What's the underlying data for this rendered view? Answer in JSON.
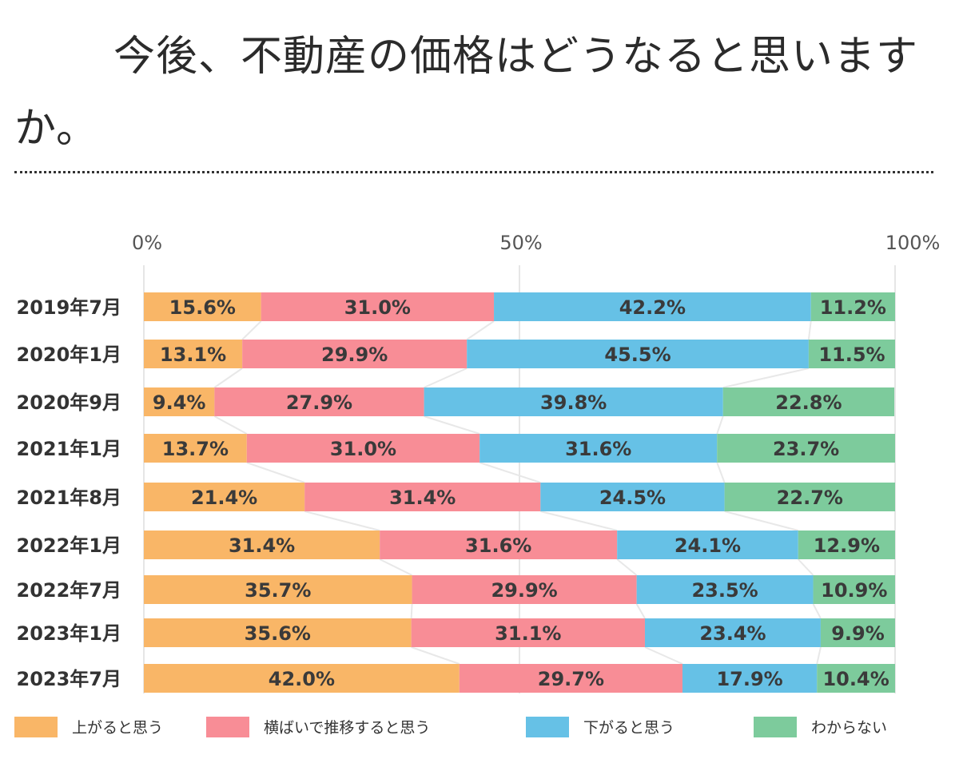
{
  "header": {
    "title": "今後、不動産の価格はどうなると思いますか。"
  },
  "chart_data": {
    "type": "bar",
    "orientation": "horizontal",
    "stacked": true,
    "title": "今後、不動産の価格はどうなると思いますか。",
    "xlim": [
      0,
      100
    ],
    "x_ticks": [
      "0%",
      "50%",
      "100%"
    ],
    "categories": [
      "2019年7月",
      "2020年1月",
      "2020年9月",
      "2021年1月",
      "2021年8月",
      "2022年1月",
      "2022年7月",
      "2023年1月",
      "2023年7月"
    ],
    "series": [
      {
        "name": "上がると思う",
        "color": "#F9B667",
        "values": [
          15.6,
          13.1,
          9.4,
          13.7,
          21.4,
          31.4,
          35.7,
          35.6,
          42.0
        ],
        "labels": [
          "15.6%",
          "13.1%",
          "9.4%",
          "13.7%",
          "21.4%",
          "31.4%",
          "35.7%",
          "35.6%",
          "42.0%"
        ]
      },
      {
        "name": "横ばいで推移すると思う",
        "color": "#F88D96",
        "values": [
          31.0,
          29.9,
          27.9,
          31.0,
          31.4,
          31.6,
          29.9,
          31.1,
          29.7
        ],
        "labels": [
          "31.0%",
          "29.9%",
          "27.9%",
          "31.0%",
          "31.4%",
          "31.6%",
          "29.9%",
          "31.1%",
          "29.7%"
        ]
      },
      {
        "name": "下がると思う",
        "color": "#66C1E6",
        "values": [
          42.2,
          45.5,
          39.8,
          31.6,
          24.5,
          24.1,
          23.5,
          23.4,
          17.9
        ],
        "labels": [
          "42.2%",
          "45.5%",
          "39.8%",
          "31.6%",
          "24.5%",
          "24.1%",
          "23.5%",
          "23.4%",
          "17.9%"
        ]
      },
      {
        "name": "わからない",
        "color": "#7DCB9C",
        "values": [
          11.2,
          11.5,
          22.8,
          23.7,
          22.7,
          12.9,
          10.9,
          9.9,
          10.4
        ],
        "labels": [
          "11.2%",
          "11.5%",
          "22.8%",
          "23.7%",
          "22.7%",
          "12.9%",
          "10.9%",
          "9.9%",
          "10.4%"
        ]
      }
    ],
    "grid": true,
    "legend_position": "bottom"
  }
}
